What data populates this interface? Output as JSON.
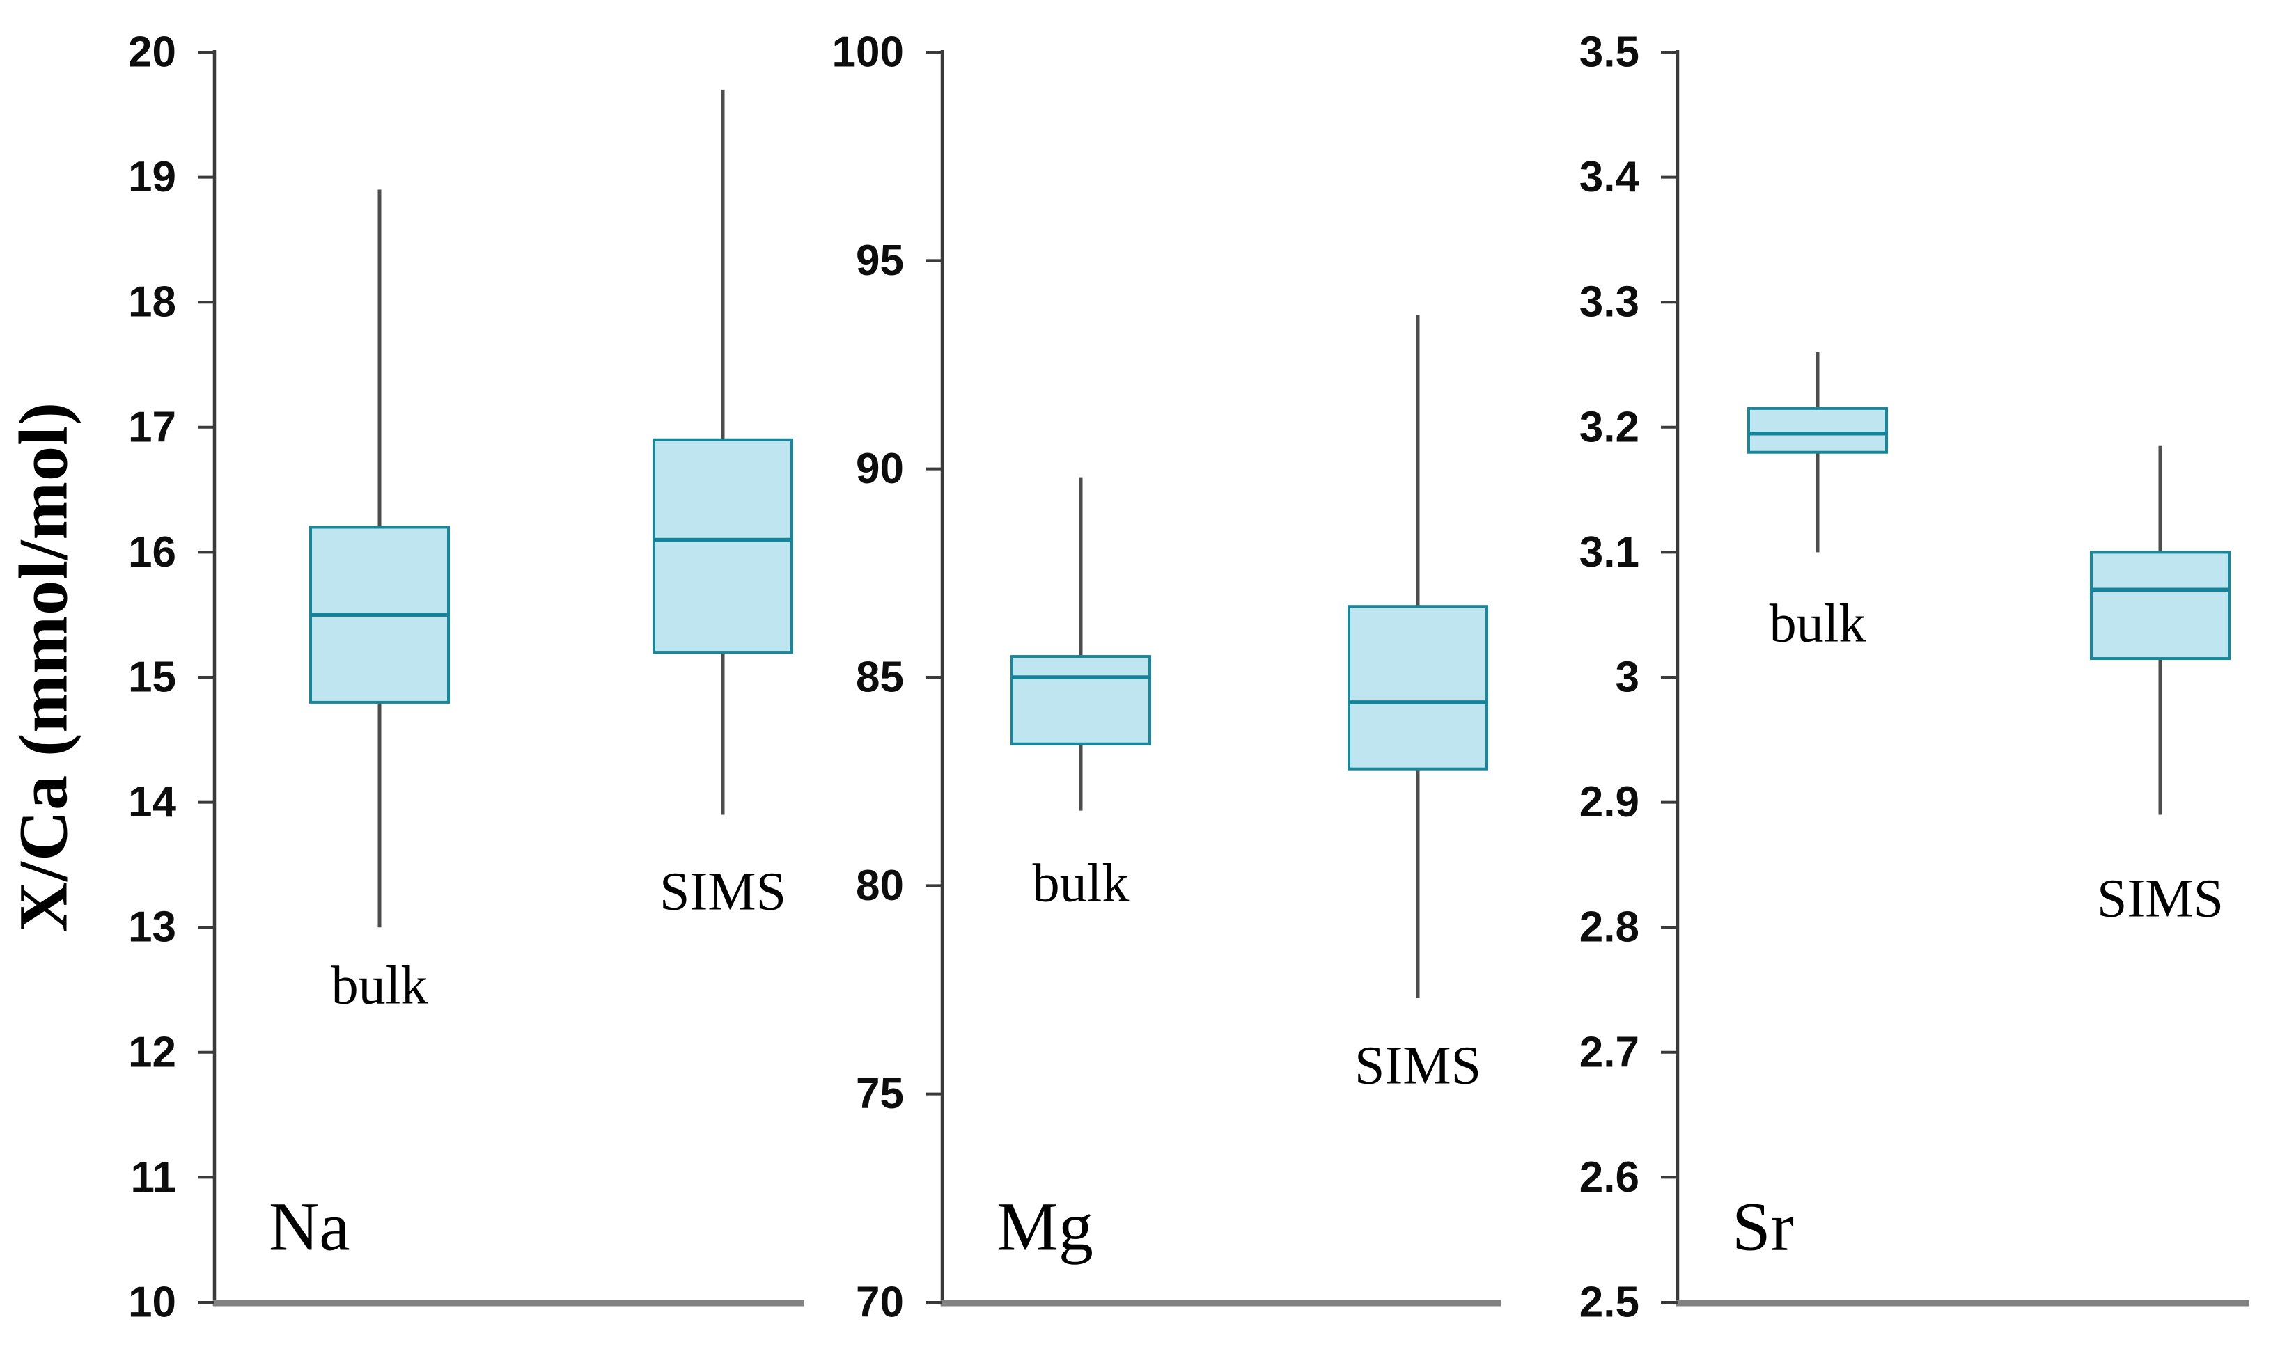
{
  "figure": {
    "y_axis_title": "X/Ca (mmol/mol)"
  },
  "chart_data": {
    "type": "boxplot",
    "ylabel": "X/Ca (mmol/mol)",
    "grid": false,
    "legend": "none",
    "panels": [
      {
        "element": "Na",
        "ylim": [
          10,
          20
        ],
        "tick_step": 1,
        "tick_labels": [
          "10",
          "11",
          "12",
          "13",
          "14",
          "15",
          "16",
          "17",
          "18",
          "19",
          "20"
        ],
        "series": [
          {
            "name": "bulk",
            "whisker_low": 13.0,
            "q1": 14.8,
            "median": 15.5,
            "q3": 16.2,
            "whisker_high": 18.9
          },
          {
            "name": "SIMS",
            "whisker_low": 13.9,
            "q1": 15.2,
            "median": 16.1,
            "q3": 16.9,
            "whisker_high": 19.7
          }
        ]
      },
      {
        "element": "Mg",
        "ylim": [
          70,
          100
        ],
        "tick_step": 5,
        "tick_labels": [
          "70",
          "75",
          "80",
          "85",
          "90",
          "95",
          "100"
        ],
        "series": [
          {
            "name": "bulk",
            "whisker_low": 81.8,
            "q1": 83.4,
            "median": 85.0,
            "q3": 85.5,
            "whisker_high": 89.8
          },
          {
            "name": "SIMS",
            "whisker_low": 77.3,
            "q1": 82.8,
            "median": 84.4,
            "q3": 86.7,
            "whisker_high": 93.7
          }
        ]
      },
      {
        "element": "Sr",
        "ylim": [
          2.5,
          3.5
        ],
        "tick_step": 0.1,
        "tick_labels": [
          "2.5",
          "2.6",
          "2.7",
          "2.8",
          "2.9",
          "3",
          "3.1",
          "3.2",
          "3.3",
          "3.4",
          "3.5"
        ],
        "series": [
          {
            "name": "bulk",
            "whisker_low": 3.1,
            "q1": 3.18,
            "median": 3.195,
            "q3": 3.215,
            "whisker_high": 3.26
          },
          {
            "name": "SIMS",
            "whisker_low": 2.89,
            "q1": 3.015,
            "median": 3.07,
            "q3": 3.1,
            "whisker_high": 3.185
          }
        ]
      }
    ],
    "colors": {
      "box_fill": "#bfe6f0",
      "box_border": "#1a869a",
      "median": "#15849a",
      "whisker": "#4d4d4d",
      "axis": "#3a3a3a",
      "baseline": "#818181",
      "text": "#000000"
    }
  }
}
